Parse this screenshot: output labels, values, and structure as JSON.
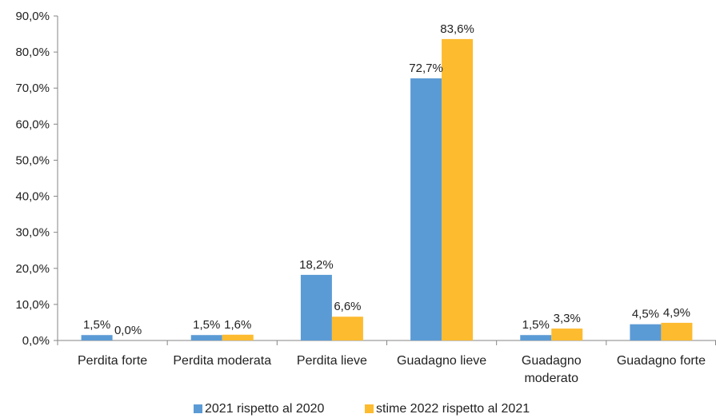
{
  "chart_data": {
    "type": "bar",
    "categories": [
      "Perdita forte",
      "Perdita moderata",
      "Perdita lieve",
      "Guadagno lieve",
      [
        "Guadagno",
        "moderato"
      ],
      "Guadagno forte"
    ],
    "series": [
      {
        "name": "2021 rispetto al 2020",
        "values": [
          1.5,
          1.5,
          18.2,
          72.7,
          1.5,
          4.5
        ],
        "labels": [
          "1,5%",
          "1,5%",
          "18,2%",
          "72,7%",
          "1,5%",
          "4,5%"
        ],
        "color": "#5b9bd5"
      },
      {
        "name": "stime 2022 rispetto al 2021",
        "values": [
          0.0,
          1.6,
          6.6,
          83.6,
          3.3,
          4.9
        ],
        "labels": [
          "0,0%",
          "1,6%",
          "6,6%",
          "83,6%",
          "3,3%",
          "4,9%"
        ],
        "color": "#fdbb2f"
      }
    ],
    "yticks": [
      "0,0%",
      "10,0%",
      "20,0%",
      "30,0%",
      "40,0%",
      "50,0%",
      "60,0%",
      "70,0%",
      "80,0%",
      "90,0%"
    ],
    "ylim": [
      0,
      90
    ],
    "grid": false,
    "legend_position": "bottom"
  }
}
